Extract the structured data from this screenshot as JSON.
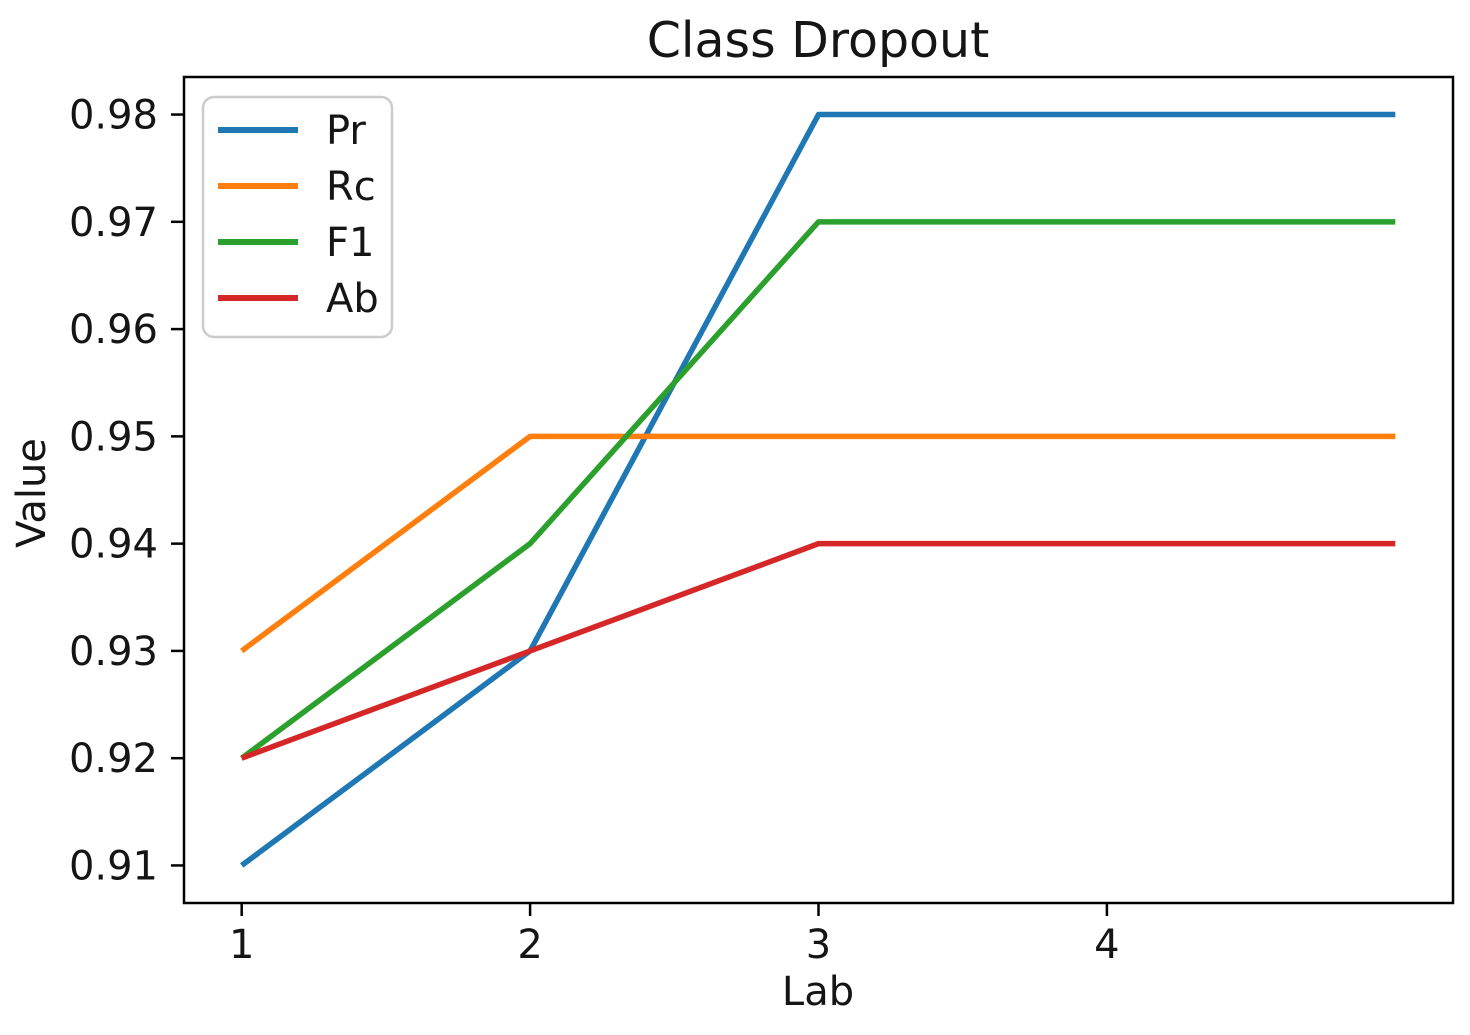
{
  "chart_data": {
    "type": "line",
    "title": "Class Dropout",
    "xlabel": "Lab",
    "ylabel": "Value",
    "x": [
      1,
      2,
      3,
      4,
      5
    ],
    "series": [
      {
        "name": "Pr",
        "color": "#1f77b4",
        "values": [
          0.91,
          0.93,
          0.98,
          0.98,
          0.98
        ]
      },
      {
        "name": "Rc",
        "color": "#ff7f0e",
        "values": [
          0.93,
          0.95,
          0.95,
          0.95,
          0.95
        ]
      },
      {
        "name": "F1",
        "color": "#2ca02c",
        "values": [
          0.92,
          0.94,
          0.97,
          0.97,
          0.97
        ]
      },
      {
        "name": "Ab",
        "color": "#d62728",
        "values": [
          0.92,
          0.93,
          0.94,
          0.94,
          0.94
        ]
      }
    ],
    "xticks": [
      "1",
      "2",
      "3",
      "4"
    ],
    "xtick_values": [
      1,
      2,
      3,
      4
    ],
    "yticks": [
      "0.91",
      "0.92",
      "0.93",
      "0.94",
      "0.95",
      "0.96",
      "0.97",
      "0.98"
    ],
    "ytick_values": [
      0.91,
      0.92,
      0.93,
      0.94,
      0.95,
      0.96,
      0.97,
      0.98
    ],
    "xlim": [
      0.8,
      5.2
    ],
    "ylim": [
      0.9065,
      0.9835
    ],
    "grid": false,
    "legend": {
      "position": "upper left",
      "entries": [
        "Pr",
        "Rc",
        "F1",
        "Ab"
      ]
    }
  },
  "colors": {
    "background": "#ffffff",
    "text": "#151515",
    "spine": "#000000",
    "legend_border": "#cccccc",
    "legend_fill": "#ffffff"
  }
}
